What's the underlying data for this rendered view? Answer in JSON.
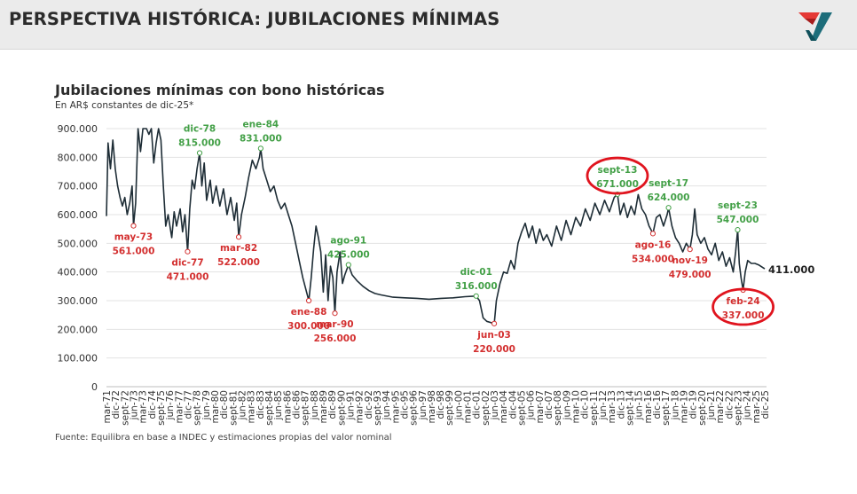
{
  "header": {
    "title": "PERSPECTIVA HISTÓRICA: JUBILACIONES MÍNIMAS",
    "logo_icon": "brand-v-logo-icon"
  },
  "colors": {
    "line": "#1e2d36",
    "high": "#43a047",
    "low": "#d32f2f",
    "circle": "#e0141e",
    "grid": "#e3e3e3"
  },
  "source": "Fuente: Equilibra en base a INDEC y estimaciones propias del valor nominal",
  "chart_data": {
    "type": "line",
    "title": "Jubilaciones mínimas con bono históricas",
    "subtitle": "En AR$ constantes de dic-25*",
    "ylim": [
      0,
      900000
    ],
    "yticks": [
      "0",
      "100.000",
      "200.000",
      "300.000",
      "400.000",
      "500.000",
      "600.000",
      "700.000",
      "800.000",
      "900.000"
    ],
    "xticks": [
      "mar-71",
      "dic-72",
      "sept-72",
      "jun-73",
      "mar-73",
      "dic-74",
      "sept-75",
      "jun-76",
      "mar-77",
      "dic-77",
      "sept-78",
      "jun-79",
      "mar-80",
      "dic-80",
      "sept-81",
      "jun-82",
      "mar-83",
      "dic-83",
      "sept-84",
      "jun-85",
      "mar-86",
      "dic-86",
      "sept-87",
      "jun-88",
      "mar-89",
      "dic-89",
      "sept-90",
      "jun-91",
      "mar-92",
      "dic-92",
      "sept-93",
      "jun-94",
      "mar-95",
      "dic-95",
      "sept-96",
      "jun-97",
      "mar-98",
      "dic-98",
      "sept-99",
      "jun-00",
      "mar-01",
      "dic-01",
      "sept-02",
      "jun-03",
      "mar-04",
      "dic-04",
      "sept-05",
      "jun-06",
      "mar-07",
      "dic-07",
      "sept-08",
      "jun-09",
      "mar-10",
      "dic-10",
      "sept-11",
      "jun-12",
      "mar-13",
      "dic-13",
      "sept-14",
      "jun-15",
      "mar-16",
      "dic-16",
      "sept-17",
      "jun-18",
      "mar-19",
      "dic-19",
      "sept-20",
      "jun-21",
      "mar-22",
      "dic-22",
      "sept-23",
      "jun-24",
      "mar-25",
      "dic-25"
    ],
    "x_start": 1971.17,
    "x_end": 2025.92,
    "series": [
      {
        "points": [
          [
            1971.17,
            595000
          ],
          [
            1971.3,
            850000
          ],
          [
            1971.5,
            760000
          ],
          [
            1971.7,
            860000
          ],
          [
            1971.9,
            760000
          ],
          [
            1972.1,
            700000
          ],
          [
            1972.3,
            660000
          ],
          [
            1972.5,
            630000
          ],
          [
            1972.7,
            660000
          ],
          [
            1972.9,
            600000
          ],
          [
            1973.1,
            640000
          ],
          [
            1973.3,
            700000
          ],
          [
            1973.42,
            561000
          ],
          [
            1973.6,
            640000
          ],
          [
            1973.8,
            900000
          ],
          [
            1974.0,
            820000
          ],
          [
            1974.2,
            900000
          ],
          [
            1974.5,
            900000
          ],
          [
            1974.7,
            880000
          ],
          [
            1974.9,
            900000
          ],
          [
            1975.1,
            780000
          ],
          [
            1975.3,
            850000
          ],
          [
            1975.5,
            900000
          ],
          [
            1975.7,
            860000
          ],
          [
            1975.9,
            700000
          ],
          [
            1976.1,
            560000
          ],
          [
            1976.3,
            600000
          ],
          [
            1976.6,
            520000
          ],
          [
            1976.8,
            610000
          ],
          [
            1977.0,
            560000
          ],
          [
            1977.3,
            620000
          ],
          [
            1977.5,
            540000
          ],
          [
            1977.7,
            600000
          ],
          [
            1977.92,
            471000
          ],
          [
            1978.1,
            620000
          ],
          [
            1978.3,
            720000
          ],
          [
            1978.5,
            690000
          ],
          [
            1978.7,
            760000
          ],
          [
            1978.92,
            815000
          ],
          [
            1979.1,
            700000
          ],
          [
            1979.3,
            780000
          ],
          [
            1979.5,
            650000
          ],
          [
            1979.8,
            720000
          ],
          [
            1980.0,
            640000
          ],
          [
            1980.3,
            700000
          ],
          [
            1980.6,
            630000
          ],
          [
            1980.9,
            690000
          ],
          [
            1981.2,
            600000
          ],
          [
            1981.5,
            660000
          ],
          [
            1981.8,
            580000
          ],
          [
            1982.0,
            640000
          ],
          [
            1982.17,
            522000
          ],
          [
            1982.4,
            600000
          ],
          [
            1982.7,
            660000
          ],
          [
            1983.0,
            730000
          ],
          [
            1983.3,
            790000
          ],
          [
            1983.6,
            760000
          ],
          [
            1983.9,
            800000
          ],
          [
            1984.0,
            831000
          ],
          [
            1984.2,
            760000
          ],
          [
            1984.5,
            720000
          ],
          [
            1984.8,
            680000
          ],
          [
            1985.1,
            700000
          ],
          [
            1985.4,
            650000
          ],
          [
            1985.7,
            620000
          ],
          [
            1986.0,
            640000
          ],
          [
            1986.3,
            600000
          ],
          [
            1986.6,
            560000
          ],
          [
            1986.9,
            500000
          ],
          [
            1987.2,
            440000
          ],
          [
            1987.5,
            380000
          ],
          [
            1988.0,
            300000
          ],
          [
            1988.2,
            380000
          ],
          [
            1988.4,
            480000
          ],
          [
            1988.6,
            560000
          ],
          [
            1988.8,
            520000
          ],
          [
            1989.0,
            470000
          ],
          [
            1989.2,
            330000
          ],
          [
            1989.4,
            460000
          ],
          [
            1989.6,
            300000
          ],
          [
            1989.8,
            420000
          ],
          [
            1990.0,
            380000
          ],
          [
            1990.17,
            256000
          ],
          [
            1990.35,
            400000
          ],
          [
            1990.6,
            470000
          ],
          [
            1990.8,
            360000
          ],
          [
            1991.0,
            390000
          ],
          [
            1991.3,
            425000
          ],
          [
            1991.6,
            390000
          ],
          [
            1992.0,
            370000
          ],
          [
            1992.5,
            350000
          ],
          [
            1993.0,
            335000
          ],
          [
            1993.5,
            325000
          ],
          [
            1994.0,
            320000
          ],
          [
            1995.0,
            312000
          ],
          [
            1996.0,
            310000
          ],
          [
            1997.0,
            308000
          ],
          [
            1998.0,
            305000
          ],
          [
            1999.0,
            308000
          ],
          [
            2000.0,
            310000
          ],
          [
            2001.0,
            314000
          ],
          [
            2001.92,
            316000
          ],
          [
            2002.2,
            300000
          ],
          [
            2002.5,
            240000
          ],
          [
            2002.8,
            228000
          ],
          [
            2003.42,
            220000
          ],
          [
            2003.6,
            300000
          ],
          [
            2003.9,
            360000
          ],
          [
            2004.2,
            400000
          ],
          [
            2004.5,
            395000
          ],
          [
            2004.8,
            440000
          ],
          [
            2005.1,
            410000
          ],
          [
            2005.4,
            500000
          ],
          [
            2005.7,
            540000
          ],
          [
            2006.0,
            570000
          ],
          [
            2006.3,
            520000
          ],
          [
            2006.6,
            560000
          ],
          [
            2006.9,
            500000
          ],
          [
            2007.2,
            550000
          ],
          [
            2007.5,
            510000
          ],
          [
            2007.8,
            530000
          ],
          [
            2008.2,
            490000
          ],
          [
            2008.6,
            560000
          ],
          [
            2009.0,
            510000
          ],
          [
            2009.4,
            580000
          ],
          [
            2009.8,
            530000
          ],
          [
            2010.2,
            590000
          ],
          [
            2010.6,
            560000
          ],
          [
            2011.0,
            620000
          ],
          [
            2011.4,
            580000
          ],
          [
            2011.8,
            640000
          ],
          [
            2012.2,
            600000
          ],
          [
            2012.6,
            650000
          ],
          [
            2013.0,
            610000
          ],
          [
            2013.4,
            660000
          ],
          [
            2013.67,
            671000
          ],
          [
            2013.9,
            600000
          ],
          [
            2014.2,
            640000
          ],
          [
            2014.5,
            590000
          ],
          [
            2014.8,
            630000
          ],
          [
            2015.1,
            600000
          ],
          [
            2015.4,
            670000
          ],
          [
            2015.7,
            620000
          ],
          [
            2016.0,
            600000
          ],
          [
            2016.3,
            560000
          ],
          [
            2016.62,
            534000
          ],
          [
            2016.9,
            590000
          ],
          [
            2017.2,
            600000
          ],
          [
            2017.5,
            560000
          ],
          [
            2017.8,
            600000
          ],
          [
            2017.92,
            624000
          ],
          [
            2018.2,
            560000
          ],
          [
            2018.5,
            520000
          ],
          [
            2018.8,
            500000
          ],
          [
            2019.1,
            470000
          ],
          [
            2019.4,
            500000
          ],
          [
            2019.7,
            479000
          ],
          [
            2019.9,
            530000
          ],
          [
            2020.1,
            620000
          ],
          [
            2020.3,
            530000
          ],
          [
            2020.6,
            500000
          ],
          [
            2020.9,
            520000
          ],
          [
            2021.2,
            480000
          ],
          [
            2021.5,
            460000
          ],
          [
            2021.8,
            500000
          ],
          [
            2022.1,
            440000
          ],
          [
            2022.4,
            470000
          ],
          [
            2022.7,
            420000
          ],
          [
            2023.0,
            450000
          ],
          [
            2023.3,
            400000
          ],
          [
            2023.5,
            470000
          ],
          [
            2023.67,
            547000
          ],
          [
            2023.8,
            430000
          ],
          [
            2023.95,
            380000
          ],
          [
            2024.12,
            337000
          ],
          [
            2024.3,
            400000
          ],
          [
            2024.5,
            440000
          ],
          [
            2024.8,
            430000
          ],
          [
            2025.1,
            430000
          ],
          [
            2025.4,
            425000
          ],
          [
            2025.92,
            411000
          ]
        ]
      }
    ],
    "annotations": [
      {
        "label": "may-73",
        "value": "561.000",
        "kind": "low",
        "x": 1973.42,
        "y": 561000
      },
      {
        "label": "dic-77",
        "value": "471.000",
        "kind": "low",
        "x": 1977.92,
        "y": 471000
      },
      {
        "label": "dic-78",
        "value": "815.000",
        "kind": "high",
        "x": 1978.92,
        "y": 815000
      },
      {
        "label": "mar-82",
        "value": "522.000",
        "kind": "low",
        "x": 1982.17,
        "y": 522000
      },
      {
        "label": "ene-84",
        "value": "831.000",
        "kind": "high",
        "x": 1984.0,
        "y": 831000
      },
      {
        "label": "ene-88",
        "value": "300.000",
        "kind": "low",
        "x": 1988.0,
        "y": 300000
      },
      {
        "label": "mar-90",
        "value": "256.000",
        "kind": "low",
        "x": 1990.17,
        "y": 256000
      },
      {
        "label": "ago-91",
        "value": "425.000",
        "kind": "high",
        "x": 1991.3,
        "y": 425000
      },
      {
        "label": "dic-01",
        "value": "316.000",
        "kind": "high",
        "x": 2001.92,
        "y": 316000
      },
      {
        "label": "jun-03",
        "value": "220.000",
        "kind": "low",
        "x": 2003.42,
        "y": 220000
      },
      {
        "label": "sept-13",
        "value": "671.000",
        "kind": "high",
        "x": 2013.67,
        "y": 671000,
        "highlight": true
      },
      {
        "label": "ago-16",
        "value": "534.000",
        "kind": "low",
        "x": 2016.62,
        "y": 534000
      },
      {
        "label": "sept-17",
        "value": "624.000",
        "kind": "high",
        "x": 2017.92,
        "y": 624000
      },
      {
        "label": "nov-19",
        "value": "479.000",
        "kind": "low",
        "x": 2019.7,
        "y": 479000
      },
      {
        "label": "sept-23",
        "value": "547.000",
        "kind": "high",
        "x": 2023.67,
        "y": 547000
      },
      {
        "label": "feb-24",
        "value": "337.000",
        "kind": "low",
        "x": 2024.12,
        "y": 337000,
        "highlight": true
      }
    ],
    "end_label": "411.000"
  }
}
